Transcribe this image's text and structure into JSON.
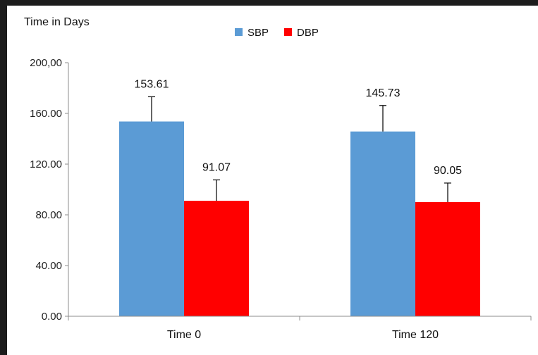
{
  "chart_data": {
    "type": "bar",
    "title": "Time in Days",
    "categories": [
      "Time 0",
      "Time 120"
    ],
    "series": [
      {
        "name": "SBP",
        "color": "#5b9bd5",
        "values": [
          153.61,
          145.73
        ],
        "labels": [
          "153.61",
          "145.73"
        ],
        "error_upper": [
          19.5,
          20.5
        ]
      },
      {
        "name": "DBP",
        "color": "#ff0000",
        "values": [
          91.07,
          90.05
        ],
        "labels": [
          "91.07",
          "90.05"
        ],
        "error_upper": [
          16.5,
          15.0
        ]
      }
    ],
    "ylim": [
      0,
      200
    ],
    "yticks": [
      "0.00",
      "40.00",
      "80.00",
      "120.00",
      "160.00",
      "200,00"
    ],
    "ytick_values": [
      0,
      40,
      80,
      120,
      160,
      200
    ],
    "grid": false,
    "legend_position": "top-center"
  }
}
